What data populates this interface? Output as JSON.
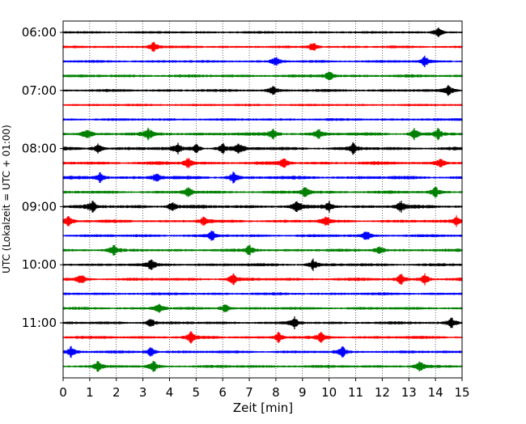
{
  "chart_data": {
    "type": "line",
    "title": "",
    "xlabel": "Zeit  [min]",
    "ylabel": "UTC (Lokalzeit = UTC + 01:00)",
    "xlim": [
      0,
      15
    ],
    "x_ticks": [
      "0",
      "1",
      "2",
      "3",
      "4",
      "5",
      "6",
      "7",
      "8",
      "9",
      "10",
      "11",
      "12",
      "13",
      "14",
      "15"
    ],
    "y_tick_labels": [
      "06:00",
      "07:00",
      "08:00",
      "09:00",
      "10:00",
      "11:00"
    ],
    "grid": "vertical dotted at each minute",
    "trace_colors": [
      "#000000",
      "#ff0000",
      "#0000ff",
      "#008000"
    ],
    "trace_start_times": [
      "06:00",
      "06:15",
      "06:30",
      "06:45",
      "07:00",
      "07:15",
      "07:30",
      "07:45",
      "08:00",
      "08:15",
      "08:30",
      "08:45",
      "09:00",
      "09:15",
      "09:30",
      "09:45",
      "10:00",
      "10:15",
      "10:30",
      "10:45",
      "11:00",
      "11:15",
      "11:30",
      "11:45"
    ],
    "events_min": [
      [
        14.1
      ],
      [
        3.4,
        9.4
      ],
      [
        8.0,
        13.6
      ],
      [
        10.0
      ],
      [
        7.9,
        14.5
      ],
      [],
      [],
      [
        0.9,
        3.2,
        7.9,
        9.6,
        13.2,
        14.1
      ],
      [
        1.3,
        4.3,
        5.0,
        6.0,
        6.6,
        10.9
      ],
      [
        4.7,
        8.3,
        14.2
      ],
      [
        1.4,
        3.5,
        6.4
      ],
      [
        4.7,
        9.1,
        14.0
      ],
      [
        1.1,
        4.1,
        8.8,
        10.0,
        12.7
      ],
      [
        0.2,
        5.3,
        9.9,
        14.8
      ],
      [
        5.6,
        11.4
      ],
      [
        1.9,
        7.0,
        11.9
      ],
      [
        3.3,
        9.4
      ],
      [
        0.7,
        6.4,
        12.7,
        13.6
      ],
      [],
      [
        3.6,
        6.1
      ],
      [
        3.3,
        8.7,
        14.6
      ],
      [
        4.8,
        8.1,
        9.7
      ],
      [
        0.3,
        3.3,
        10.5
      ],
      [
        1.3,
        3.4,
        13.4
      ]
    ],
    "noise_levels": [
      0.25,
      0.3,
      0.3,
      0.45,
      0.35,
      0.2,
      0.3,
      0.6,
      0.6,
      0.55,
      0.6,
      0.45,
      0.65,
      0.5,
      0.4,
      0.4,
      0.45,
      0.5,
      0.35,
      0.35,
      0.4,
      0.45,
      0.4,
      0.4
    ]
  }
}
